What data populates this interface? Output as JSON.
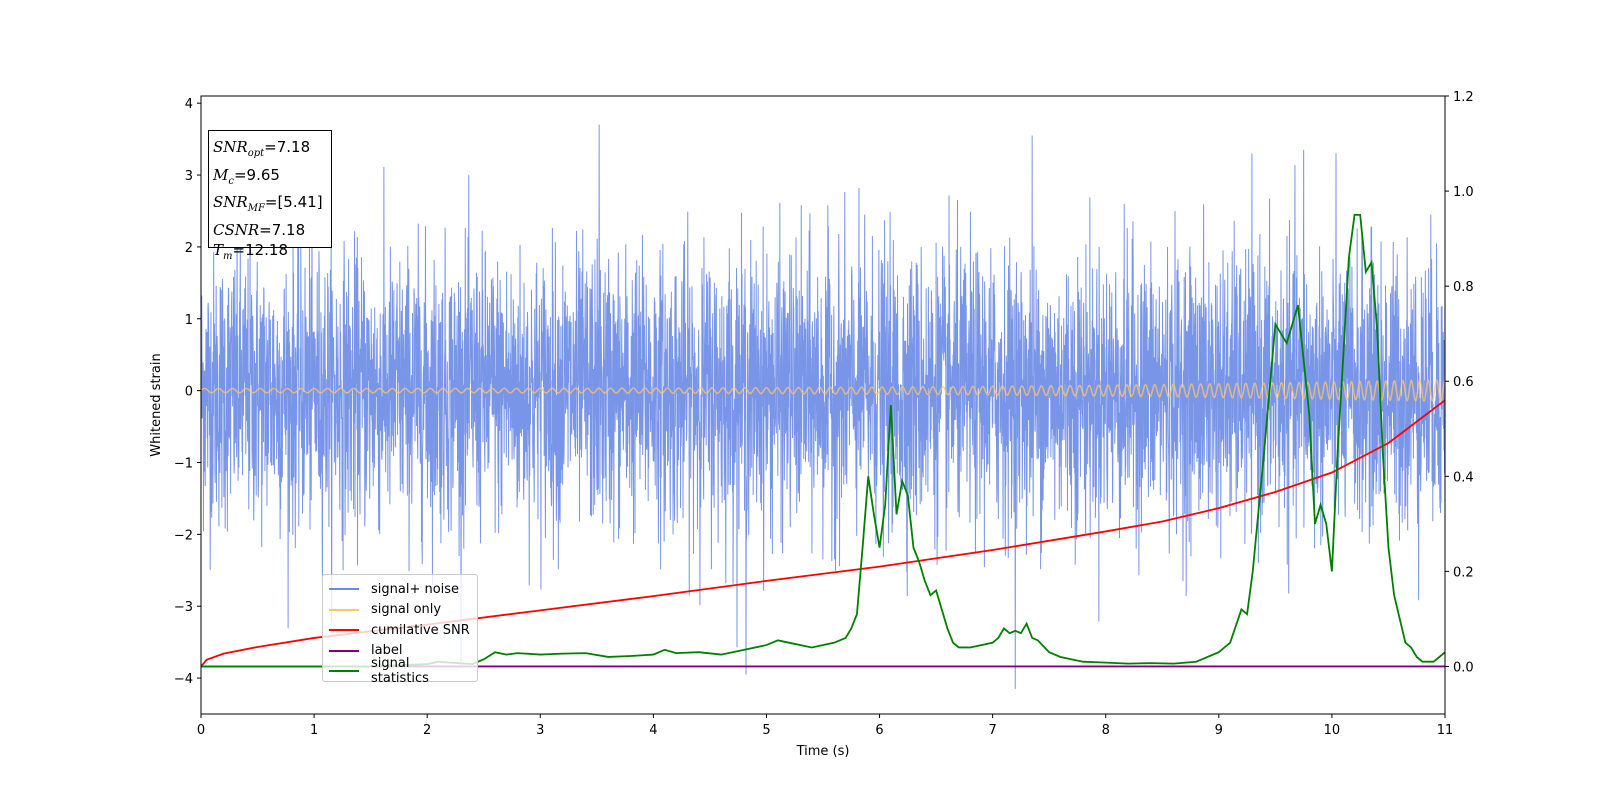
{
  "chart_data": {
    "type": "line",
    "xlabel": "Time (s)",
    "ylabel": "Whitened strain",
    "xlim": [
      0,
      11
    ],
    "ylim": [
      -4.5,
      4.1
    ],
    "y2lim": [
      -0.1,
      1.2
    ],
    "x_ticks": [
      "0",
      "1",
      "2",
      "3",
      "4",
      "5",
      "6",
      "7",
      "8",
      "9",
      "10",
      "11"
    ],
    "y_ticks": [
      "−4",
      "−3",
      "−2",
      "−1",
      "0",
      "1",
      "2",
      "3",
      "4"
    ],
    "y_tick_values": [
      -4,
      -3,
      -2,
      -1,
      0,
      1,
      2,
      3,
      4
    ],
    "y2_ticks": [
      "0.0",
      "0.2",
      "0.4",
      "0.6",
      "0.8",
      "1.0",
      "1.2"
    ],
    "y2_tick_values": [
      0.0,
      0.2,
      0.4,
      0.6,
      0.8,
      1.0,
      1.2
    ],
    "annotation": {
      "snr_opt": "=7.18",
      "mc": "=9.65",
      "snr_mf": "=[5.41]",
      "csnr": "=7.18",
      "tm": "=12.18"
    },
    "series": [
      {
        "name": "signal+ noise",
        "color": "#6a89e6",
        "axis": "left",
        "noise_std": 1.0,
        "noise_range": [
          -4.15,
          3.7
        ],
        "notable_peaks": [
          [
            3.52,
            3.7
          ],
          [
            7.35,
            3.55
          ],
          [
            9.75,
            3.35
          ],
          [
            7.2,
            -4.15
          ],
          [
            4.82,
            -3.95
          ]
        ]
      },
      {
        "name": "signal only",
        "color": "#ffc56b",
        "axis": "left",
        "amplitude_start": 0.03,
        "amplitude_end": 0.15
      },
      {
        "name": "cumilative SNR",
        "color": "#ff0000",
        "axis": "right",
        "x": [
          0,
          0.05,
          0.2,
          0.5,
          1,
          2,
          3,
          4,
          5,
          6,
          7,
          8,
          8.5,
          9,
          9.5,
          10,
          10.5,
          11
        ],
        "y": [
          0.0,
          0.014,
          0.027,
          0.041,
          0.06,
          0.088,
          0.118,
          0.148,
          0.18,
          0.21,
          0.245,
          0.284,
          0.305,
          0.333,
          0.367,
          0.408,
          0.47,
          0.56
        ]
      },
      {
        "name": "label",
        "color": "#800080",
        "axis": "right",
        "x": [
          0,
          11
        ],
        "y": [
          0.0,
          0.0
        ]
      },
      {
        "name": "signal statistics",
        "color": "#008000",
        "axis": "right",
        "x": [
          0,
          0.5,
          1,
          1.5,
          2,
          2.1,
          2.2,
          2.4,
          2.5,
          2.6,
          2.7,
          2.8,
          3,
          3.2,
          3.4,
          3.6,
          3.8,
          4.0,
          4.1,
          4.2,
          4.4,
          4.6,
          4.8,
          5.0,
          5.1,
          5.2,
          5.4,
          5.6,
          5.7,
          5.75,
          5.8,
          5.85,
          5.9,
          5.95,
          6.0,
          6.05,
          6.1,
          6.15,
          6.2,
          6.25,
          6.3,
          6.35,
          6.4,
          6.45,
          6.5,
          6.55,
          6.6,
          6.65,
          6.7,
          6.8,
          6.9,
          7.0,
          7.05,
          7.1,
          7.15,
          7.2,
          7.25,
          7.3,
          7.35,
          7.4,
          7.5,
          7.6,
          7.8,
          8.0,
          8.2,
          8.4,
          8.6,
          8.8,
          8.9,
          9.0,
          9.1,
          9.2,
          9.25,
          9.3,
          9.4,
          9.5,
          9.6,
          9.7,
          9.8,
          9.85,
          9.9,
          9.95,
          10.0,
          10.05,
          10.1,
          10.15,
          10.2,
          10.25,
          10.3,
          10.35,
          10.4,
          10.45,
          10.5,
          10.55,
          10.6,
          10.65,
          10.7,
          10.75,
          10.8,
          10.9,
          11.0
        ],
        "y": [
          0.0,
          0.0,
          0.0,
          0.0,
          0.005,
          0.01,
          0.008,
          0.005,
          0.015,
          0.03,
          0.025,
          0.028,
          0.025,
          0.027,
          0.028,
          0.02,
          0.022,
          0.025,
          0.035,
          0.028,
          0.03,
          0.025,
          0.035,
          0.045,
          0.055,
          0.05,
          0.04,
          0.05,
          0.06,
          0.08,
          0.11,
          0.25,
          0.4,
          0.32,
          0.25,
          0.34,
          0.55,
          0.32,
          0.39,
          0.36,
          0.25,
          0.22,
          0.18,
          0.15,
          0.16,
          0.12,
          0.08,
          0.05,
          0.04,
          0.04,
          0.045,
          0.05,
          0.06,
          0.08,
          0.07,
          0.075,
          0.07,
          0.09,
          0.06,
          0.055,
          0.03,
          0.02,
          0.01,
          0.008,
          0.006,
          0.007,
          0.006,
          0.01,
          0.02,
          0.03,
          0.05,
          0.12,
          0.11,
          0.2,
          0.45,
          0.72,
          0.68,
          0.76,
          0.53,
          0.3,
          0.34,
          0.3,
          0.2,
          0.45,
          0.65,
          0.86,
          0.95,
          0.95,
          0.83,
          0.85,
          0.71,
          0.45,
          0.25,
          0.15,
          0.1,
          0.05,
          0.04,
          0.02,
          0.01,
          0.01,
          0.03
        ]
      }
    ]
  }
}
